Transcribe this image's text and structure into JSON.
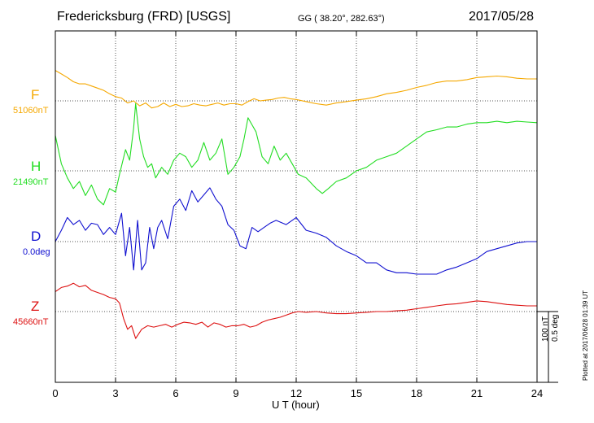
{
  "header": {
    "station": "Fredericksburg (FRD)  [USGS]",
    "coords": "GG ( 38.20°, 282.63°)",
    "date": "2017/05/28"
  },
  "footer": {
    "plotted": "Plotted at 2017/06/28 01:39 UT"
  },
  "scale": {
    "nt": "100 nT",
    "deg": "0.5 deg"
  },
  "colors": {
    "F": "#f5a800",
    "H": "#22dd22",
    "D": "#1010d0",
    "Z": "#dd1111"
  },
  "chart_data": {
    "type": "line",
    "title": "Fredericksburg (FRD)  [USGS]",
    "xlabel": "U T (hour)",
    "xlim": [
      0,
      24
    ],
    "xticks": [
      0,
      3,
      6,
      9,
      12,
      15,
      18,
      21,
      24
    ],
    "grid": true,
    "series": [
      {
        "name": "F",
        "baseline_label": "51060nT",
        "units": "nT",
        "x": [
          0,
          0.3,
          0.6,
          0.9,
          1.2,
          1.5,
          1.8,
          2.1,
          2.4,
          2.7,
          3.0,
          3.3,
          3.6,
          3.9,
          4.2,
          4.5,
          4.8,
          5.1,
          5.4,
          5.7,
          6.0,
          6.3,
          6.6,
          6.9,
          7.2,
          7.5,
          7.8,
          8.1,
          8.4,
          8.7,
          9.0,
          9.3,
          9.6,
          9.9,
          10.2,
          10.5,
          10.8,
          11.1,
          11.4,
          11.7,
          12.0,
          12.5,
          13.0,
          13.5,
          14.0,
          14.5,
          15.0,
          15.5,
          16.0,
          16.5,
          17.0,
          17.5,
          18.0,
          18.5,
          19.0,
          19.5,
          20.0,
          20.5,
          21.0,
          21.5,
          22.0,
          22.5,
          23.0,
          23.5,
          24.0
        ],
        "values": [
          43,
          38,
          33,
          27,
          24,
          24,
          21,
          18,
          15,
          10,
          6,
          4,
          -3,
          0,
          -7,
          -3,
          -10,
          -8,
          -3,
          -8,
          -5,
          -8,
          -7,
          -4,
          -6,
          -7,
          -5,
          -3,
          -6,
          -4,
          -4,
          -6,
          -1,
          3,
          0,
          1,
          2,
          4,
          5,
          3,
          2,
          -1,
          -4,
          -6,
          -3,
          -1,
          1,
          3,
          6,
          10,
          12,
          15,
          19,
          22,
          26,
          28,
          28,
          30,
          33,
          34,
          35,
          34,
          32,
          31,
          31
        ]
      },
      {
        "name": "H",
        "baseline_label": "21490nT",
        "units": "nT",
        "x": [
          0,
          0.3,
          0.6,
          0.9,
          1.2,
          1.5,
          1.8,
          2.1,
          2.4,
          2.7,
          3.0,
          3.2,
          3.5,
          3.7,
          3.9,
          4.0,
          4.2,
          4.4,
          4.6,
          4.8,
          5.0,
          5.3,
          5.6,
          5.9,
          6.2,
          6.5,
          6.8,
          7.1,
          7.4,
          7.7,
          8.0,
          8.3,
          8.6,
          8.9,
          9.2,
          9.4,
          9.6,
          9.8,
          10.0,
          10.3,
          10.6,
          10.9,
          11.2,
          11.5,
          11.8,
          12.1,
          12.5,
          13.0,
          13.3,
          13.6,
          14.0,
          14.5,
          15.0,
          15.5,
          16.0,
          16.5,
          17.0,
          17.5,
          18.0,
          18.5,
          19.0,
          19.5,
          20.0,
          20.5,
          21.0,
          21.5,
          22.0,
          22.5,
          23.0,
          23.5,
          24.0
        ],
        "values": [
          50,
          10,
          -10,
          -25,
          -15,
          -35,
          -20,
          -40,
          -48,
          -25,
          -30,
          -5,
          30,
          15,
          60,
          95,
          45,
          20,
          5,
          10,
          -10,
          5,
          -5,
          15,
          25,
          20,
          5,
          15,
          40,
          15,
          25,
          45,
          -5,
          5,
          20,
          45,
          75,
          65,
          55,
          20,
          10,
          35,
          15,
          25,
          10,
          -5,
          -10,
          -25,
          -32,
          -25,
          -15,
          -10,
          0,
          5,
          15,
          20,
          25,
          35,
          45,
          55,
          58,
          62,
          62,
          66,
          68,
          68,
          70,
          68,
          70,
          69,
          68
        ]
      },
      {
        "name": "D",
        "baseline_label": "0.0deg",
        "units": "deg",
        "x": [
          0,
          0.3,
          0.6,
          0.9,
          1.2,
          1.5,
          1.8,
          2.1,
          2.4,
          2.7,
          3.0,
          3.3,
          3.5,
          3.7,
          3.9,
          4.1,
          4.3,
          4.5,
          4.7,
          4.9,
          5.1,
          5.3,
          5.6,
          5.9,
          6.2,
          6.5,
          6.8,
          7.1,
          7.4,
          7.7,
          8.0,
          8.3,
          8.6,
          8.9,
          9.2,
          9.5,
          9.8,
          10.1,
          10.4,
          10.7,
          11.0,
          11.5,
          12.0,
          12.5,
          13.0,
          13.5,
          14.0,
          14.5,
          15.0,
          15.5,
          16.0,
          16.5,
          17.0,
          17.5,
          18.0,
          18.5,
          19.0,
          19.5,
          20.0,
          20.5,
          21.0,
          21.5,
          22.0,
          22.5,
          23.0,
          23.5,
          24.0
        ],
        "values": [
          0.0,
          0.08,
          0.17,
          0.12,
          0.15,
          0.08,
          0.13,
          0.12,
          0.05,
          0.1,
          0.05,
          0.2,
          -0.1,
          0.1,
          -0.2,
          0.15,
          -0.2,
          -0.15,
          0.1,
          -0.05,
          0.1,
          0.15,
          0.02,
          0.25,
          0.3,
          0.22,
          0.36,
          0.28,
          0.33,
          0.38,
          0.3,
          0.25,
          0.12,
          0.08,
          -0.03,
          -0.05,
          0.1,
          0.07,
          0.1,
          0.13,
          0.15,
          0.12,
          0.17,
          0.08,
          0.06,
          0.03,
          -0.03,
          -0.07,
          -0.1,
          -0.15,
          -0.15,
          -0.2,
          -0.22,
          -0.22,
          -0.23,
          -0.23,
          -0.23,
          -0.2,
          -0.18,
          -0.15,
          -0.12,
          -0.07,
          -0.05,
          -0.03,
          -0.01,
          0.0,
          0.0
        ]
      },
      {
        "name": "Z",
        "baseline_label": "45660nT",
        "units": "nT",
        "x": [
          0,
          0.3,
          0.6,
          0.9,
          1.2,
          1.5,
          1.8,
          2.1,
          2.4,
          2.7,
          3.0,
          3.2,
          3.4,
          3.6,
          3.8,
          4.0,
          4.3,
          4.6,
          4.9,
          5.2,
          5.5,
          5.8,
          6.1,
          6.4,
          6.7,
          7.0,
          7.3,
          7.6,
          7.9,
          8.2,
          8.5,
          8.8,
          9.1,
          9.4,
          9.7,
          10.0,
          10.3,
          10.6,
          10.9,
          11.2,
          11.5,
          11.8,
          12.1,
          12.5,
          13.0,
          13.5,
          14.0,
          14.5,
          15.0,
          15.5,
          16.0,
          16.5,
          17.0,
          17.5,
          18.0,
          18.5,
          19.0,
          19.5,
          20.0,
          20.5,
          21.0,
          21.5,
          22.0,
          22.5,
          23.0,
          23.5,
          24.0
        ],
        "values": [
          28,
          34,
          36,
          40,
          35,
          37,
          30,
          27,
          24,
          20,
          18,
          12,
          -10,
          -25,
          -20,
          -38,
          -25,
          -20,
          -22,
          -20,
          -18,
          -22,
          -18,
          -15,
          -16,
          -18,
          -15,
          -22,
          -16,
          -18,
          -22,
          -20,
          -20,
          -18,
          -22,
          -20,
          -15,
          -12,
          -10,
          -8,
          -5,
          -2,
          0,
          -1,
          0,
          -2,
          -3,
          -3,
          -2,
          -1,
          0,
          0,
          1,
          2,
          4,
          6,
          8,
          10,
          11,
          13,
          15,
          14,
          12,
          10,
          9,
          8,
          8
        ]
      }
    ]
  }
}
